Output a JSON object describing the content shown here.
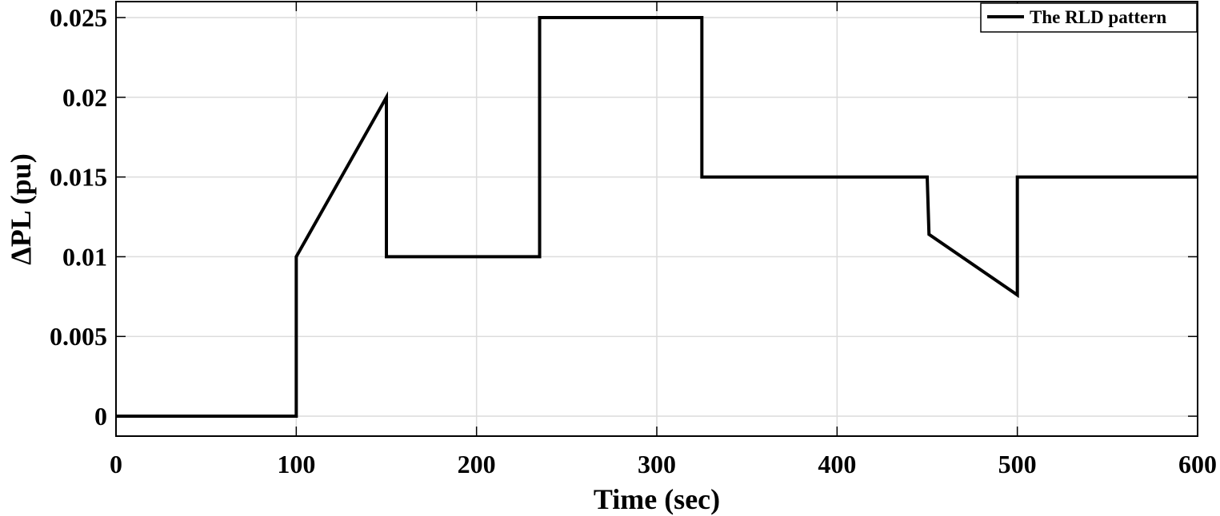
{
  "chart_data": {
    "type": "line",
    "title": "",
    "xlabel": "Time (sec)",
    "ylabel": "ΔPL (pu)",
    "xlim": [
      0,
      600
    ],
    "ylim": [
      -0.00125,
      0.026
    ],
    "xticks": [
      0,
      100,
      200,
      300,
      400,
      500,
      600
    ],
    "xtick_labels": [
      "0",
      "100",
      "200",
      "300",
      "400",
      "500",
      "600"
    ],
    "yticks": [
      0,
      0.005,
      0.01,
      0.015,
      0.02,
      0.025
    ],
    "ytick_labels": [
      "0",
      "0.005",
      "0.01",
      "0.015",
      "0.02",
      "0.025"
    ],
    "grid": true,
    "legend_position": "top-right",
    "series": [
      {
        "name": "The RLD pattern",
        "color": "#000000",
        "x": [
          0,
          100,
          100,
          150,
          150,
          235,
          235,
          325,
          325,
          450,
          451,
          500,
          500,
          600
        ],
        "y": [
          0,
          0,
          0.01,
          0.02,
          0.01,
          0.01,
          0.025,
          0.025,
          0.015,
          0.015,
          0.0114,
          0.0076,
          0.015,
          0.015
        ]
      }
    ]
  },
  "colors": {
    "grid": "#dcdcdc",
    "axes": "#000000",
    "line": "#000000",
    "background": "#ffffff"
  }
}
